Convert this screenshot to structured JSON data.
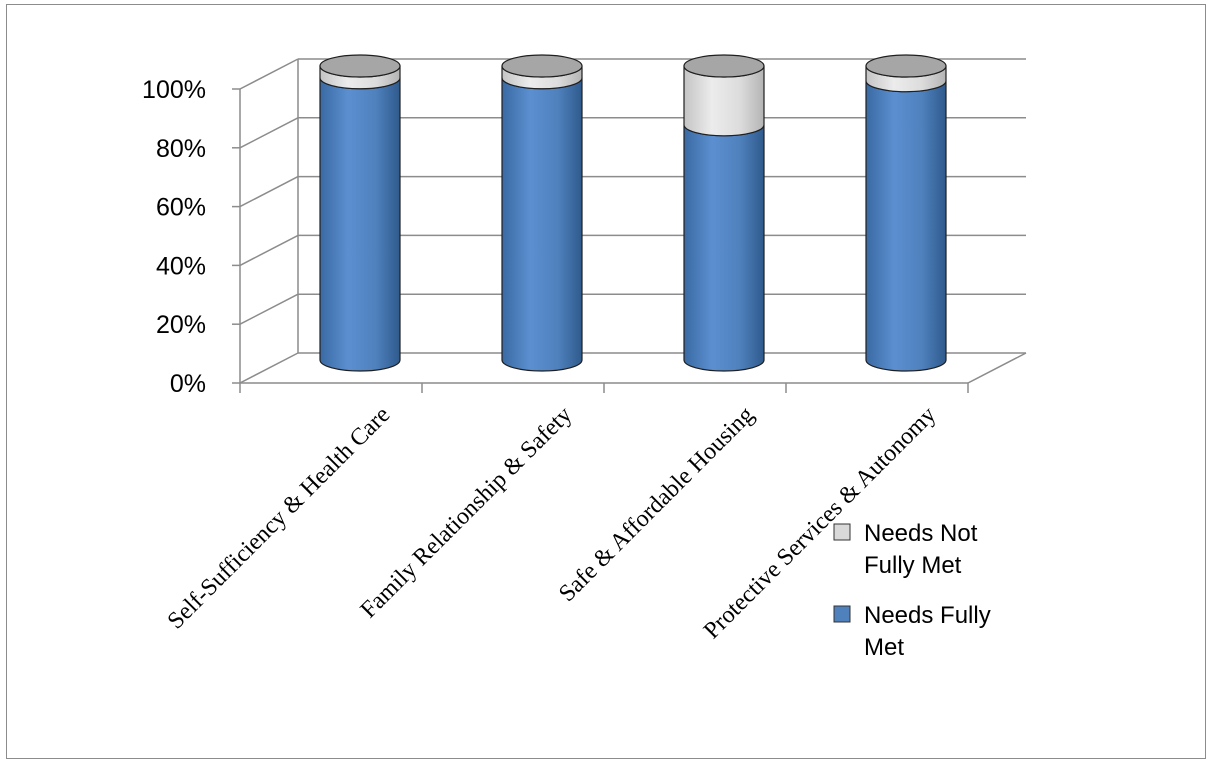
{
  "chart_data": {
    "type": "bar",
    "stacked": true,
    "three_d": true,
    "title": "",
    "xlabel": "",
    "ylabel": "",
    "ylim": [
      0,
      100
    ],
    "yticks": [
      "0%",
      "20%",
      "40%",
      "60%",
      "80%",
      "100%"
    ],
    "categories": [
      "Self-Sufficiency & Health Care",
      "Family Relationship & Safety",
      "Safe & Affordable Housing",
      "Protective Services & Autonomy"
    ],
    "series": [
      {
        "name": "Needs Fully Met",
        "values": [
          96,
          96,
          80,
          95
        ],
        "color": "#4f81bd"
      },
      {
        "name": "Needs Not Fully Met",
        "values": [
          4,
          4,
          20,
          5
        ],
        "color": "#d9d9d9"
      }
    ],
    "legend": {
      "placement": "right",
      "entries": [
        {
          "lines": [
            "Needs Not",
            "Fully Met"
          ],
          "color": "#d9d9d9"
        },
        {
          "lines": [
            "Needs Fully",
            "Met"
          ],
          "color": "#4f81bd"
        }
      ]
    },
    "grid": true
  }
}
